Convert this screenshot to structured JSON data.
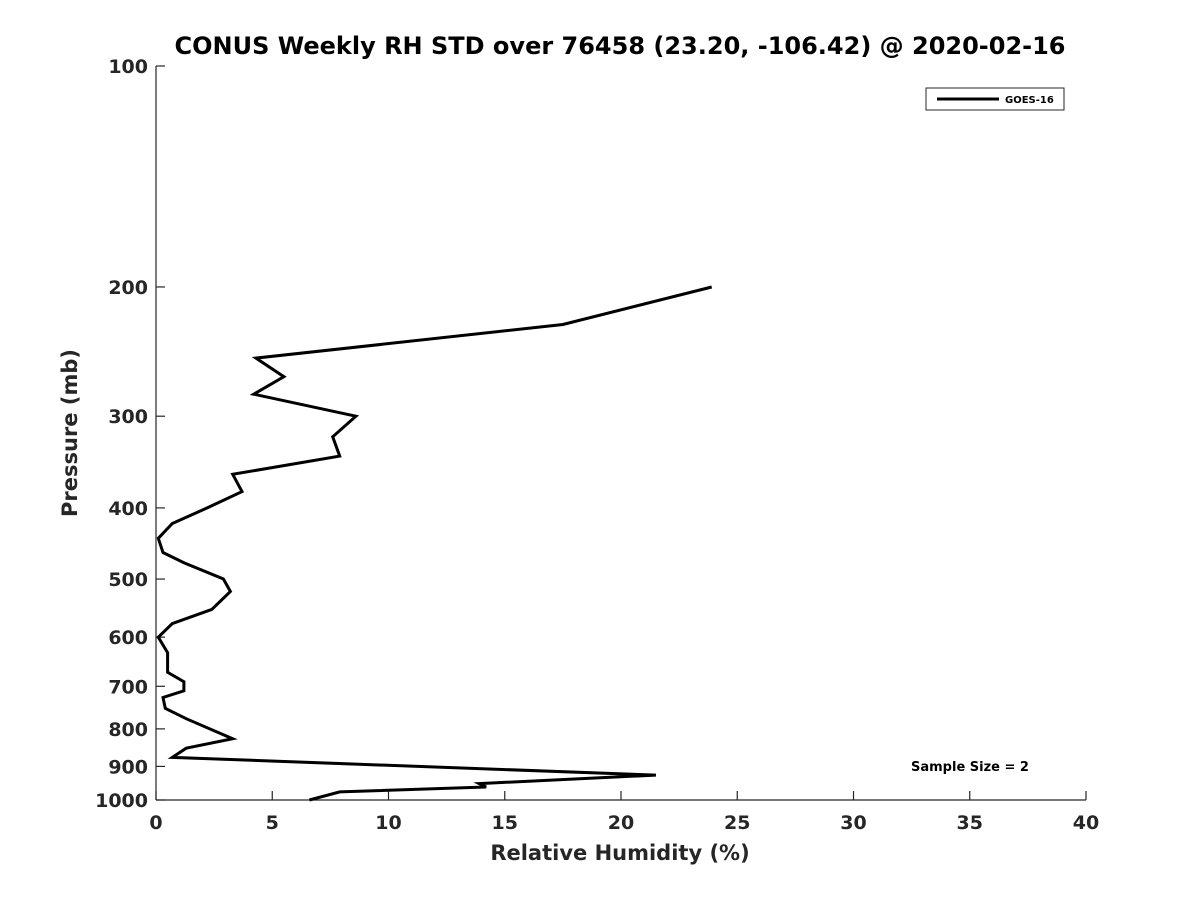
{
  "chart_data": {
    "type": "line",
    "title": "CONUS Weekly RH STD over 76458 (23.20, -106.42) @ 2020-02-16",
    "xlabel": "Relative Humidity (%)",
    "ylabel": "Pressure (mb)",
    "xlim": [
      0,
      40
    ],
    "ylim": [
      100,
      1000
    ],
    "yscale": "log",
    "y_reversed": true,
    "x_ticks": [
      0,
      5,
      10,
      15,
      20,
      25,
      30,
      35,
      40
    ],
    "x_tick_labels": [
      "0",
      "5",
      "10",
      "15",
      "20",
      "25",
      "30",
      "35",
      "40"
    ],
    "y_ticks": [
      100,
      200,
      300,
      400,
      500,
      600,
      700,
      800,
      900,
      1000
    ],
    "y_tick_labels": [
      "100",
      "200",
      "300",
      "400",
      "500",
      "600",
      "700",
      "800",
      "900",
      "1000"
    ],
    "grid": false,
    "legend_position": "top-right",
    "series": [
      {
        "name": "GOES-16",
        "color": "#000000",
        "x": [
          23.9,
          17.5,
          4.3,
          5.5,
          4.2,
          8.6,
          7.6,
          7.9,
          3.3,
          3.7,
          2.2,
          0.7,
          0.1,
          0.3,
          1.2,
          2.9,
          3.2,
          2.4,
          0.7,
          0.1,
          0.3,
          0.5,
          0.5,
          0.5,
          1.2,
          1.2,
          0.3,
          0.4,
          1.3,
          3.3,
          1.3,
          0.7,
          21.5,
          13.9,
          14.2,
          7.9,
          6.6
        ],
        "y": [
          200,
          225,
          250,
          265,
          280,
          300,
          320,
          340,
          360,
          380,
          400,
          420,
          440,
          460,
          475,
          500,
          520,
          550,
          575,
          600,
          615,
          630,
          650,
          670,
          690,
          710,
          725,
          750,
          775,
          825,
          850,
          875,
          925,
          950,
          960,
          975,
          1000
        ]
      }
    ],
    "annotations": [
      "Sample Size = 2"
    ]
  }
}
